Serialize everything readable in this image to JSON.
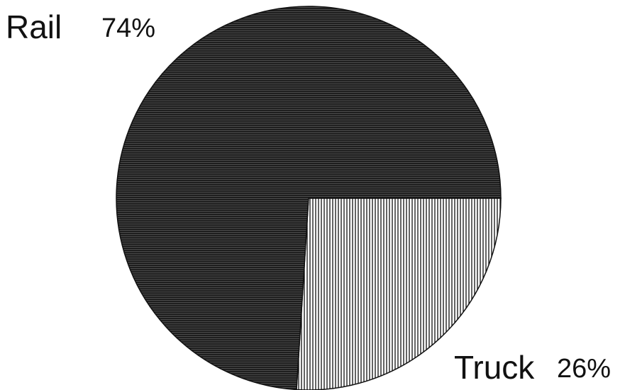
{
  "chart_data": {
    "type": "pie",
    "categories": [
      "Rail",
      "Truck"
    ],
    "values": [
      74,
      26
    ],
    "value_labels": [
      "74%",
      "26%"
    ],
    "colors": [
      "#1e1e1e",
      "#ffffff"
    ],
    "start_angle": 0,
    "counterclock": false
  }
}
